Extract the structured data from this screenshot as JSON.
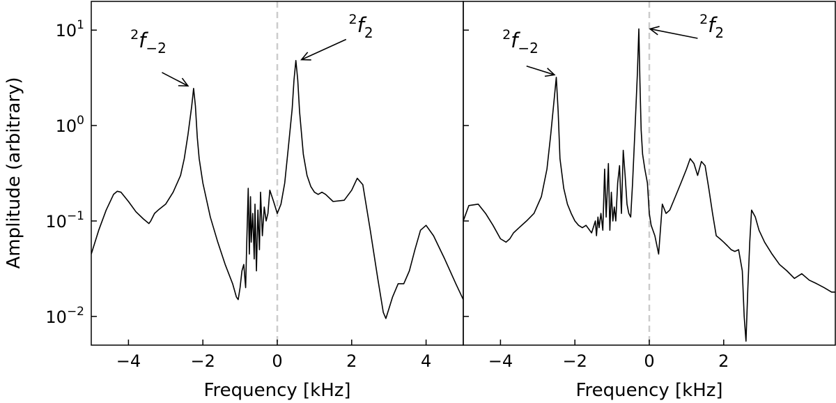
{
  "figure": {
    "ylabel": "Amplitude (arbitrary)",
    "ylabel_shared": true
  },
  "chart_data": [
    {
      "type": "line",
      "panel": "left",
      "xlabel": "Frequency [kHz]",
      "ylabel": "Amplitude (arbitrary)",
      "yscale": "log",
      "xlim": [
        -5.0,
        5.0
      ],
      "ylim": [
        0.005,
        20
      ],
      "xticks": [
        -4,
        -2,
        0,
        2,
        4
      ],
      "xtick_labels": [
        "−4",
        "−2",
        "0",
        "2",
        "4"
      ],
      "yticks": [
        0.01,
        0.1,
        1,
        10
      ],
      "ytick_labels": [
        {
          "base": "10",
          "exp": "−2"
        },
        {
          "base": "10",
          "exp": "−1"
        },
        {
          "base": "10",
          "exp": "0"
        },
        {
          "base": "10",
          "exp": "1"
        }
      ],
      "grid": false,
      "reference_line": {
        "x": 0,
        "style": "dashed",
        "color": "#cccccc"
      },
      "annotations": [
        {
          "label": {
            "sup": "2",
            "main": "f",
            "sub": "−2"
          },
          "text_at": [
            -3.95,
            6.6
          ],
          "arrow_from": [
            -3.1,
            3.6
          ],
          "arrow_to": [
            -2.4,
            2.6
          ]
        },
        {
          "label": {
            "sup": "2",
            "main": "f",
            "sub": "2"
          },
          "text_at": [
            1.92,
            9.5
          ],
          "arrow_from": [
            1.85,
            8.0
          ],
          "arrow_to": [
            0.65,
            4.9
          ]
        }
      ],
      "series": [
        {
          "color": "#000000",
          "x": [
            -5.0,
            -4.8,
            -4.6,
            -4.4,
            -4.3,
            -4.2,
            -4.0,
            -3.8,
            -3.6,
            -3.45,
            -3.4,
            -3.3,
            -3.2,
            -3.0,
            -2.8,
            -2.6,
            -2.5,
            -2.4,
            -2.3,
            -2.25,
            -2.2,
            -2.15,
            -2.1,
            -2.0,
            -1.8,
            -1.6,
            -1.4,
            -1.2,
            -1.1,
            -1.05,
            -1.0,
            -0.95,
            -0.9,
            -0.85,
            -0.82,
            -0.78,
            -0.75,
            -0.72,
            -0.7,
            -0.66,
            -0.62,
            -0.6,
            -0.56,
            -0.52,
            -0.48,
            -0.45,
            -0.4,
            -0.35,
            -0.3,
            -0.25,
            -0.2,
            -0.1,
            0.0,
            0.1,
            0.2,
            0.3,
            0.4,
            0.45,
            0.5,
            0.55,
            0.6,
            0.7,
            0.8,
            0.9,
            1.0,
            1.1,
            1.2,
            1.3,
            1.5,
            1.8,
            2.0,
            2.15,
            2.3,
            2.5,
            2.7,
            2.85,
            2.92,
            3.0,
            3.1,
            3.25,
            3.4,
            3.55,
            3.7,
            3.85,
            4.0,
            4.2,
            4.5,
            4.8,
            5.0
          ],
          "y": [
            0.045,
            0.08,
            0.13,
            0.19,
            0.205,
            0.2,
            0.16,
            0.125,
            0.105,
            0.094,
            0.1,
            0.12,
            0.13,
            0.15,
            0.2,
            0.3,
            0.45,
            0.8,
            1.6,
            2.45,
            1.6,
            0.75,
            0.45,
            0.25,
            0.11,
            0.06,
            0.035,
            0.022,
            0.016,
            0.015,
            0.02,
            0.03,
            0.035,
            0.02,
            0.06,
            0.22,
            0.045,
            0.18,
            0.06,
            0.12,
            0.04,
            0.15,
            0.03,
            0.13,
            0.05,
            0.2,
            0.07,
            0.14,
            0.1,
            0.12,
            0.21,
            0.16,
            0.12,
            0.15,
            0.25,
            0.6,
            1.5,
            3.0,
            4.8,
            3.0,
            1.4,
            0.5,
            0.3,
            0.23,
            0.2,
            0.19,
            0.2,
            0.19,
            0.16,
            0.165,
            0.21,
            0.28,
            0.24,
            0.08,
            0.025,
            0.011,
            0.0095,
            0.012,
            0.016,
            0.022,
            0.022,
            0.03,
            0.05,
            0.08,
            0.09,
            0.07,
            0.04,
            0.022,
            0.015
          ]
        }
      ]
    },
    {
      "type": "line",
      "panel": "right",
      "xlabel": "Frequency [kHz]",
      "yscale": "log",
      "xlim": [
        -5.0,
        5.0
      ],
      "ylim": [
        0.005,
        20
      ],
      "xticks": [
        -4,
        -2,
        0,
        2
      ],
      "xtick_labels": [
        "−4",
        "−2",
        "0",
        "2"
      ],
      "yticks": [
        0.01,
        0.1,
        1,
        10
      ],
      "grid": false,
      "reference_line": {
        "x": 0,
        "style": "dashed",
        "color": "#cccccc"
      },
      "annotations": [
        {
          "label": {
            "sup": "2",
            "main": "f",
            "sub": "−2"
          },
          "text_at": [
            -3.95,
            6.6
          ],
          "arrow_from": [
            -3.3,
            4.2
          ],
          "arrow_to": [
            -2.55,
            3.4
          ]
        },
        {
          "label": {
            "sup": "2",
            "main": "f",
            "sub": "2"
          },
          "text_at": [
            1.35,
            9.5
          ],
          "arrow_from": [
            1.3,
            8.2
          ],
          "arrow_to": [
            0.02,
            10.3
          ]
        }
      ],
      "series": [
        {
          "color": "#000000",
          "x": [
            -5.0,
            -4.85,
            -4.6,
            -4.4,
            -4.2,
            -4.0,
            -3.85,
            -3.75,
            -3.65,
            -3.5,
            -3.3,
            -3.1,
            -2.9,
            -2.75,
            -2.65,
            -2.55,
            -2.5,
            -2.45,
            -2.4,
            -2.3,
            -2.2,
            -2.1,
            -2.0,
            -1.9,
            -1.8,
            -1.7,
            -1.55,
            -1.45,
            -1.42,
            -1.38,
            -1.35,
            -1.3,
            -1.25,
            -1.2,
            -1.16,
            -1.1,
            -1.06,
            -1.02,
            -0.98,
            -0.94,
            -0.9,
            -0.85,
            -0.8,
            -0.75,
            -0.7,
            -0.65,
            -0.6,
            -0.55,
            -0.5,
            -0.45,
            -0.38,
            -0.32,
            -0.28,
            -0.25,
            -0.22,
            -0.18,
            -0.12,
            -0.05,
            0.0,
            0.05,
            0.15,
            0.25,
            0.35,
            0.45,
            0.55,
            0.7,
            0.85,
            1.0,
            1.1,
            1.2,
            1.3,
            1.4,
            1.5,
            1.6,
            1.7,
            1.8,
            1.9,
            2.0,
            2.1,
            2.2,
            2.3,
            2.4,
            2.5,
            2.55,
            2.6,
            2.65,
            2.7,
            2.75,
            2.85,
            2.95,
            3.1,
            3.3,
            3.5,
            3.7,
            3.9,
            4.1,
            4.3,
            4.5,
            4.7,
            4.9,
            5.0
          ],
          "y": [
            0.1,
            0.145,
            0.15,
            0.12,
            0.09,
            0.065,
            0.06,
            0.065,
            0.075,
            0.085,
            0.1,
            0.12,
            0.18,
            0.35,
            0.8,
            2.0,
            3.2,
            1.4,
            0.45,
            0.22,
            0.15,
            0.12,
            0.1,
            0.09,
            0.085,
            0.09,
            0.075,
            0.1,
            0.07,
            0.11,
            0.085,
            0.12,
            0.08,
            0.35,
            0.11,
            0.4,
            0.08,
            0.2,
            0.1,
            0.14,
            0.1,
            0.25,
            0.38,
            0.12,
            0.55,
            0.3,
            0.15,
            0.12,
            0.11,
            0.25,
            1.0,
            3.5,
            10.3,
            2.8,
            0.9,
            0.5,
            0.35,
            0.25,
            0.12,
            0.09,
            0.07,
            0.045,
            0.15,
            0.12,
            0.13,
            0.18,
            0.25,
            0.35,
            0.45,
            0.4,
            0.3,
            0.42,
            0.38,
            0.22,
            0.12,
            0.07,
            0.065,
            0.06,
            0.055,
            0.05,
            0.048,
            0.05,
            0.03,
            0.01,
            0.0055,
            0.02,
            0.06,
            0.13,
            0.11,
            0.08,
            0.06,
            0.045,
            0.035,
            0.03,
            0.025,
            0.028,
            0.024,
            0.022,
            0.02,
            0.018,
            0.018
          ]
        }
      ]
    }
  ]
}
